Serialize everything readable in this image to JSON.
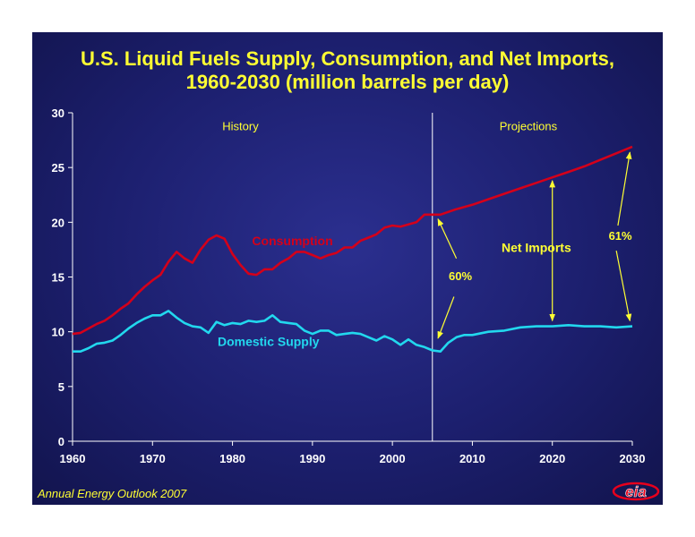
{
  "page": {
    "title_line1": "U.S. Liquid Fuels Supply, Consumption, and Net Imports,",
    "title_line2": "1960-2030 (million barrels per day)",
    "footer": "Annual Energy Outlook 2007",
    "logo_text": "eia"
  },
  "colors": {
    "consumption": "#d4001a",
    "domestic": "#22d8ee",
    "label_yellow": "#ffff33",
    "axis_text": "#ffffff"
  },
  "chart_data": {
    "type": "line",
    "title": "U.S. Liquid Fuels Supply, Consumption, and Net Imports, 1960-2030 (million barrels per day)",
    "xlim": [
      1960,
      2030
    ],
    "ylim": [
      0,
      30
    ],
    "x_ticks": [
      1960,
      1970,
      1980,
      1990,
      2000,
      2010,
      2020,
      2030
    ],
    "y_ticks": [
      0,
      5,
      10,
      15,
      20,
      25,
      30
    ],
    "grid": false,
    "divider_year": 2005,
    "region_labels": {
      "history": "History",
      "projections": "Projections"
    },
    "series": [
      {
        "name": "Consumption",
        "x": [
          1960,
          1961,
          1962,
          1963,
          1964,
          1965,
          1966,
          1967,
          1968,
          1969,
          1970,
          1971,
          1972,
          1973,
          1974,
          1975,
          1976,
          1977,
          1978,
          1979,
          1980,
          1981,
          1982,
          1983,
          1984,
          1985,
          1986,
          1987,
          1988,
          1989,
          1990,
          1991,
          1992,
          1993,
          1994,
          1995,
          1996,
          1997,
          1998,
          1999,
          2000,
          2001,
          2002,
          2003,
          2004,
          2005,
          2006,
          2008,
          2010,
          2012,
          2014,
          2016,
          2018,
          2020,
          2022,
          2024,
          2026,
          2028,
          2030
        ],
        "values": [
          9.8,
          9.9,
          10.3,
          10.7,
          11.0,
          11.5,
          12.1,
          12.6,
          13.4,
          14.1,
          14.7,
          15.2,
          16.4,
          17.3,
          16.7,
          16.3,
          17.5,
          18.4,
          18.8,
          18.5,
          17.1,
          16.1,
          15.3,
          15.2,
          15.7,
          15.7,
          16.3,
          16.7,
          17.3,
          17.3,
          17.0,
          16.7,
          17.0,
          17.2,
          17.7,
          17.7,
          18.3,
          18.6,
          18.9,
          19.5,
          19.7,
          19.6,
          19.8,
          20.0,
          20.7,
          20.7,
          20.7,
          21.2,
          21.6,
          22.1,
          22.6,
          23.1,
          23.6,
          24.1,
          24.6,
          25.1,
          25.7,
          26.3,
          26.9
        ]
      },
      {
        "name": "Domestic Supply",
        "x": [
          1960,
          1961,
          1962,
          1963,
          1964,
          1965,
          1966,
          1967,
          1968,
          1969,
          1970,
          1971,
          1972,
          1973,
          1974,
          1975,
          1976,
          1977,
          1978,
          1979,
          1980,
          1981,
          1982,
          1983,
          1984,
          1985,
          1986,
          1987,
          1988,
          1989,
          1990,
          1991,
          1992,
          1993,
          1994,
          1995,
          1996,
          1997,
          1998,
          1999,
          2000,
          2001,
          2002,
          2003,
          2004,
          2005,
          2006,
          2007,
          2008,
          2009,
          2010,
          2012,
          2014,
          2016,
          2018,
          2020,
          2022,
          2024,
          2026,
          2028,
          2030
        ],
        "values": [
          8.2,
          8.2,
          8.5,
          8.9,
          9.0,
          9.2,
          9.7,
          10.3,
          10.8,
          11.2,
          11.5,
          11.5,
          11.9,
          11.3,
          10.8,
          10.5,
          10.4,
          9.9,
          10.9,
          10.6,
          10.8,
          10.7,
          11.0,
          10.9,
          11.0,
          11.5,
          10.9,
          10.8,
          10.7,
          10.1,
          9.8,
          10.1,
          10.1,
          9.7,
          9.8,
          9.9,
          9.8,
          9.5,
          9.2,
          9.6,
          9.3,
          8.8,
          9.3,
          8.8,
          8.6,
          8.3,
          8.2,
          9.0,
          9.5,
          9.7,
          9.7,
          10.0,
          10.1,
          10.4,
          10.5,
          10.5,
          10.6,
          10.5,
          10.5,
          10.4,
          10.5
        ]
      }
    ],
    "annotations": {
      "consumption_label": "Consumption",
      "domestic_label": "Domestic Supply",
      "net_imports_label": "Net Imports",
      "pct_2005": "60%",
      "pct_2030": "61%"
    }
  }
}
